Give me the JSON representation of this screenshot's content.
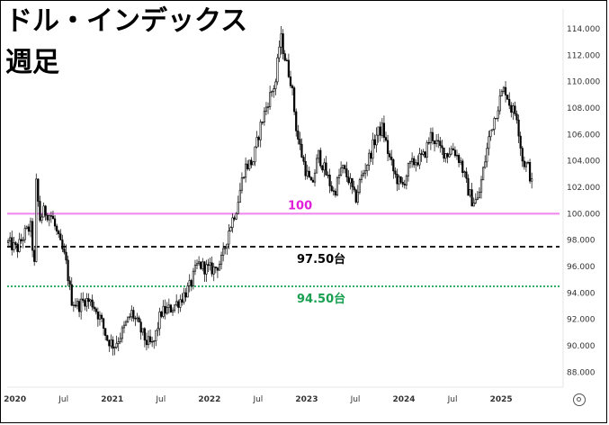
{
  "header": {
    "title": "ドル・インデックス",
    "subtitle": "週足"
  },
  "colors": {
    "candle": "#000000",
    "level_100": "#f08cf0",
    "level_100_text": "#e020d8",
    "level_97_5": "#000000",
    "level_94_5": "#18a050",
    "grid": "#eeeeee"
  },
  "icons": {
    "settings": "gear-icon"
  },
  "chart_data": {
    "type": "candlestick",
    "title": "ドル・インデックス",
    "subtitle": "週足",
    "x_ticks": [
      "2020",
      "Jul",
      "2021",
      "Jul",
      "2022",
      "Jul",
      "2023",
      "Jul",
      "2024",
      "Jul",
      "2025"
    ],
    "y_ticks": [
      "88.000",
      "90.000",
      "92.000",
      "94.000",
      "96.000",
      "98.000",
      "100.000",
      "102.000",
      "104.000",
      "106.000",
      "108.000",
      "110.000",
      "112.000",
      "114.000"
    ],
    "ylim": [
      87,
      115.5
    ],
    "xlim": [
      2019.92,
      2025.6
    ],
    "horizontal_levels": [
      {
        "value": 100.0,
        "label": "100",
        "style": "solid",
        "color": "#f08cf0"
      },
      {
        "value": 97.5,
        "label": "97.50台",
        "style": "dashed",
        "color": "#000000"
      },
      {
        "value": 94.5,
        "label": "94.50台",
        "style": "dotted",
        "color": "#18a050"
      }
    ],
    "series": [
      {
        "values": [
          [
            2019.93,
            97.8
          ],
          [
            2020.02,
            97.3
          ],
          [
            2020.1,
            98.5
          ],
          [
            2020.16,
            99.0
          ],
          [
            2020.2,
            96.0
          ],
          [
            2020.22,
            102.8
          ],
          [
            2020.25,
            99.5
          ],
          [
            2020.3,
            100.2
          ],
          [
            2020.38,
            99.8
          ],
          [
            2020.45,
            98.0
          ],
          [
            2020.52,
            96.5
          ],
          [
            2020.58,
            93.5
          ],
          [
            2020.65,
            93.0
          ],
          [
            2020.72,
            93.5
          ],
          [
            2020.8,
            93.2
          ],
          [
            2020.88,
            92.0
          ],
          [
            2020.95,
            90.5
          ],
          [
            2021.02,
            90.0
          ],
          [
            2021.1,
            91.0
          ],
          [
            2021.2,
            92.5
          ],
          [
            2021.27,
            91.5
          ],
          [
            2021.35,
            90.3
          ],
          [
            2021.42,
            90.0
          ],
          [
            2021.5,
            92.5
          ],
          [
            2021.6,
            92.8
          ],
          [
            2021.7,
            93.5
          ],
          [
            2021.8,
            94.5
          ],
          [
            2021.88,
            96.2
          ],
          [
            2021.98,
            95.8
          ],
          [
            2022.05,
            95.8
          ],
          [
            2022.13,
            96.5
          ],
          [
            2022.2,
            98.8
          ],
          [
            2022.28,
            100.5
          ],
          [
            2022.36,
            103.5
          ],
          [
            2022.45,
            104.0
          ],
          [
            2022.52,
            106.5
          ],
          [
            2022.6,
            108.5
          ],
          [
            2022.68,
            110.0
          ],
          [
            2022.73,
            113.5
          ],
          [
            2022.77,
            112.0
          ],
          [
            2022.84,
            110.0
          ],
          [
            2022.9,
            106.0
          ],
          [
            2022.98,
            103.5
          ],
          [
            2023.05,
            102.0
          ],
          [
            2023.12,
            104.5
          ],
          [
            2023.2,
            103.0
          ],
          [
            2023.28,
            101.5
          ],
          [
            2023.36,
            103.5
          ],
          [
            2023.44,
            102.5
          ],
          [
            2023.5,
            101.0
          ],
          [
            2023.55,
            102.5
          ],
          [
            2023.63,
            104.0
          ],
          [
            2023.72,
            106.0
          ],
          [
            2023.78,
            106.5
          ],
          [
            2023.84,
            104.5
          ],
          [
            2023.9,
            103.0
          ],
          [
            2023.98,
            102.0
          ],
          [
            2024.05,
            103.5
          ],
          [
            2024.12,
            104.0
          ],
          [
            2024.2,
            104.3
          ],
          [
            2024.28,
            106.0
          ],
          [
            2024.36,
            105.0
          ],
          [
            2024.44,
            104.5
          ],
          [
            2024.5,
            105.0
          ],
          [
            2024.58,
            104.0
          ],
          [
            2024.65,
            102.0
          ],
          [
            2024.7,
            101.0
          ],
          [
            2024.76,
            101.0
          ],
          [
            2024.82,
            103.5
          ],
          [
            2024.88,
            106.0
          ],
          [
            2024.94,
            107.5
          ],
          [
            2025.0,
            109.0
          ],
          [
            2025.04,
            109.5
          ],
          [
            2025.1,
            108.0
          ],
          [
            2025.16,
            107.5
          ],
          [
            2025.22,
            104.0
          ],
          [
            2025.28,
            103.5
          ],
          [
            2025.32,
            102.0
          ]
        ]
      }
    ]
  }
}
